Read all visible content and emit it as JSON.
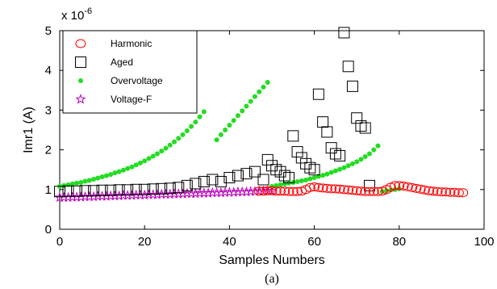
{
  "chart_data": {
    "type": "scatter",
    "title": "",
    "caption": "(a)",
    "xlabel": "Samples Numbers",
    "ylabel": "Imr1 (A)",
    "y_multiplier": "x 10",
    "y_exponent": "-6",
    "xlim": [
      0,
      100
    ],
    "ylim": [
      0,
      5
    ],
    "x_ticks": [
      0,
      20,
      40,
      60,
      80,
      100
    ],
    "y_ticks": [
      0,
      1,
      2,
      3,
      4,
      5
    ],
    "grid": false,
    "legend_position": "top-left",
    "series": [
      {
        "name": "Harmonic",
        "marker": "circle",
        "color": "#ff0000",
        "x": [
          47,
          48,
          49,
          50,
          51,
          52,
          53,
          54,
          55,
          56,
          57,
          58,
          59,
          60,
          61,
          62,
          63,
          64,
          65,
          66,
          67,
          68,
          69,
          70,
          71,
          72,
          73,
          74,
          75,
          76,
          77,
          78,
          79,
          80,
          81,
          82,
          83,
          84,
          85,
          86,
          87,
          88,
          89,
          90,
          91,
          92,
          93,
          94,
          95
        ],
        "y": [
          0.96,
          0.96,
          0.97,
          0.97,
          0.96,
          0.96,
          0.96,
          0.95,
          0.95,
          0.95,
          0.96,
          1.0,
          1.05,
          1.07,
          1.05,
          1.04,
          1.03,
          1.02,
          1.02,
          1.01,
          1.0,
          0.99,
          0.98,
          0.97,
          0.96,
          0.95,
          0.95,
          0.95,
          0.95,
          0.96,
          1.0,
          1.06,
          1.1,
          1.1,
          1.09,
          1.07,
          1.05,
          1.03,
          1.01,
          0.99,
          0.97,
          0.96,
          0.95,
          0.94,
          0.94,
          0.93,
          0.93,
          0.92,
          0.92
        ]
      },
      {
        "name": "Aged",
        "marker": "square",
        "color": "#000000",
        "x": [
          0,
          2,
          4,
          6,
          8,
          10,
          12,
          14,
          16,
          18,
          20,
          22,
          24,
          26,
          28,
          30,
          32,
          34,
          36,
          38,
          40,
          42,
          44,
          46,
          48,
          49,
          50,
          51,
          52,
          53,
          54,
          55,
          56,
          57,
          58,
          59,
          60,
          61,
          62,
          63,
          64,
          65,
          66,
          67,
          68,
          69,
          70,
          71,
          72,
          73
        ],
        "y": [
          0.95,
          0.96,
          0.96,
          0.97,
          0.97,
          0.98,
          0.98,
          0.99,
          0.99,
          1.0,
          1.0,
          1.01,
          1.02,
          1.03,
          1.05,
          1.1,
          1.15,
          1.2,
          1.25,
          1.2,
          1.3,
          1.35,
          1.4,
          1.45,
          1.25,
          1.75,
          1.6,
          1.5,
          1.45,
          1.35,
          1.3,
          2.35,
          1.95,
          1.8,
          1.65,
          1.55,
          1.5,
          3.4,
          2.7,
          2.45,
          2.05,
          1.9,
          1.85,
          4.95,
          4.1,
          3.6,
          2.8,
          2.6,
          2.55,
          1.1
        ]
      },
      {
        "name": "Overvoltage",
        "marker": "dot",
        "color": "#22dd22",
        "x": [
          0,
          1,
          2,
          3,
          4,
          5,
          6,
          7,
          8,
          9,
          10,
          11,
          12,
          13,
          14,
          15,
          16,
          17,
          18,
          19,
          20,
          21,
          22,
          23,
          24,
          25,
          26,
          27,
          28,
          29,
          30,
          31,
          32,
          33,
          34,
          37,
          38,
          39,
          40,
          41,
          42,
          43,
          44,
          45,
          46,
          47,
          48,
          49,
          50,
          51,
          52,
          53,
          54,
          55,
          56,
          57,
          58,
          59,
          60,
          61,
          62,
          63,
          64,
          65,
          66,
          67,
          68,
          69,
          70,
          71,
          72,
          73,
          74,
          75,
          76,
          77,
          78,
          79,
          80
        ],
        "y": [
          1.08,
          1.1,
          1.12,
          1.14,
          1.16,
          1.18,
          1.21,
          1.23,
          1.26,
          1.29,
          1.32,
          1.35,
          1.38,
          1.42,
          1.45,
          1.49,
          1.53,
          1.57,
          1.62,
          1.67,
          1.72,
          1.78,
          1.84,
          1.9,
          1.97,
          2.04,
          2.12,
          2.2,
          2.29,
          2.38,
          2.48,
          2.59,
          2.7,
          2.83,
          2.96,
          2.25,
          2.38,
          2.5,
          2.62,
          2.74,
          2.86,
          2.98,
          3.1,
          3.22,
          3.34,
          3.46,
          3.58,
          3.7,
          1.08,
          1.1,
          1.12,
          1.14,
          1.16,
          1.18,
          1.2,
          1.22,
          1.24,
          1.27,
          1.3,
          1.33,
          1.36,
          1.39,
          1.43,
          1.47,
          1.51,
          1.55,
          1.6,
          1.65,
          1.7,
          1.76,
          1.83,
          1.9,
          2.0,
          2.1,
          0.95,
          0.97,
          0.99,
          1.0,
          1.02
        ]
      },
      {
        "name": "Voltage-F",
        "marker": "star",
        "color": "#bb00bb",
        "x": [
          0,
          1,
          2,
          3,
          4,
          5,
          6,
          7,
          8,
          9,
          10,
          11,
          12,
          13,
          14,
          15,
          16,
          17,
          18,
          19,
          20,
          21,
          22,
          23,
          24,
          25,
          26,
          27,
          28,
          29,
          30,
          31,
          32,
          33,
          34,
          35,
          36,
          37,
          38,
          39,
          40,
          41,
          42,
          43,
          44,
          45,
          46,
          47,
          48,
          49,
          50
        ],
        "y": [
          0.8,
          0.8,
          0.8,
          0.81,
          0.81,
          0.81,
          0.82,
          0.82,
          0.82,
          0.83,
          0.83,
          0.83,
          0.84,
          0.84,
          0.84,
          0.85,
          0.85,
          0.85,
          0.86,
          0.86,
          0.86,
          0.87,
          0.87,
          0.87,
          0.88,
          0.88,
          0.88,
          0.89,
          0.89,
          0.89,
          0.9,
          0.9,
          0.9,
          0.91,
          0.91,
          0.91,
          0.92,
          0.92,
          0.92,
          0.93,
          0.93,
          0.93,
          0.94,
          0.94,
          0.94,
          0.95,
          0.95,
          0.96,
          0.96,
          0.97,
          0.97
        ]
      }
    ]
  }
}
